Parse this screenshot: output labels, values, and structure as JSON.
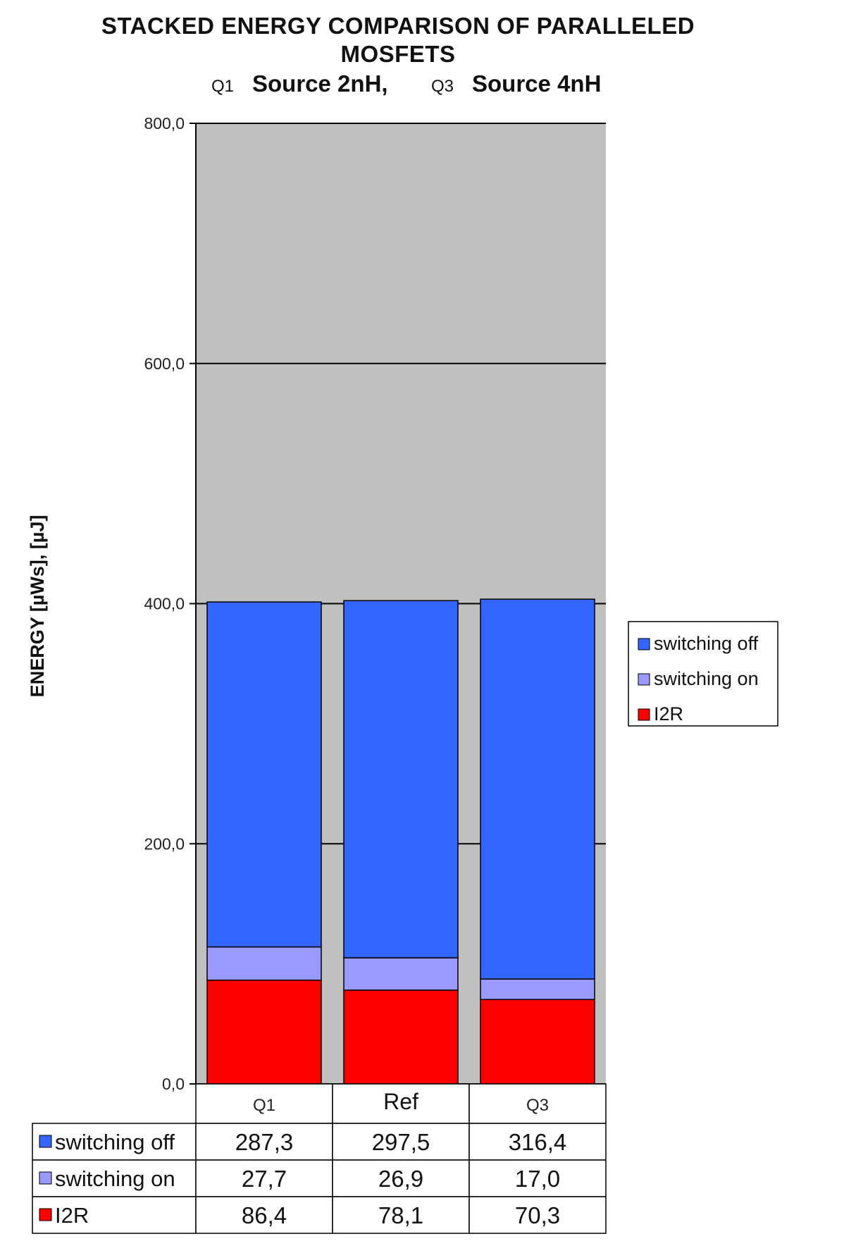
{
  "chart_data": {
    "type": "bar",
    "stacked": true,
    "title": "STACKED ENERGY COMPARISON OF PARALLELED MOSFETS",
    "title_lines": [
      "STACKED ENERGY COMPARISON OF PARALLELED",
      "MOSFETS"
    ],
    "subtitle": {
      "parts": [
        {
          "small": "Q1",
          "big": "Source 2nH,"
        },
        {
          "small": "Q3",
          "big": "Source 4nH"
        }
      ]
    },
    "ylabel": "ENERGY [µWs], [µJ]",
    "xlabel": "",
    "ylim": [
      0,
      800
    ],
    "yticks": [
      0,
      200,
      400,
      600,
      800
    ],
    "ytick_labels": [
      "0,0",
      "200,0",
      "400,0",
      "600,0",
      "800,0"
    ],
    "categories": [
      "Q1",
      "Ref",
      "Q3"
    ],
    "series": [
      {
        "name": "I2R",
        "color": "#ff0000",
        "values": [
          86.4,
          78.1,
          70.3
        ],
        "labels": [
          "86,4",
          "78,1",
          "70,3"
        ]
      },
      {
        "name": "switching on",
        "color": "#9999ff",
        "values": [
          27.7,
          26.9,
          17.0
        ],
        "labels": [
          "27,7",
          "26,9",
          "17,0"
        ]
      },
      {
        "name": "switching off",
        "color": "#3366ff",
        "values": [
          287.3,
          297.5,
          316.4
        ],
        "labels": [
          "287,3",
          "297,5",
          "316,4"
        ]
      }
    ],
    "legend": {
      "placement": "right",
      "order": [
        "switching off",
        "switching on",
        "I2R"
      ]
    },
    "grid": true,
    "plot_background": "#c0c0c0",
    "data_table": true
  }
}
